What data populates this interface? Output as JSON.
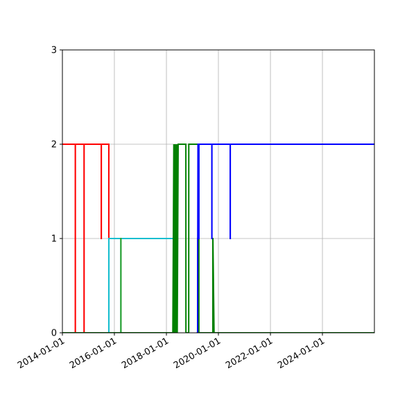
{
  "chart_data": {
    "type": "line",
    "title": "",
    "xlabel": "",
    "ylabel": "",
    "x_type": "date",
    "xlim": [
      "2014-01-01",
      "2025-12-31"
    ],
    "ylim": [
      0,
      3
    ],
    "grid": true,
    "legend": "none",
    "xticks": [
      "2014-01-01",
      "2016-01-01",
      "2018-01-01",
      "2020-01-01",
      "2022-01-01",
      "2024-01-01"
    ],
    "yticks": [
      0,
      1,
      2,
      3
    ],
    "series": [
      {
        "color": "#ff0000",
        "x": [
          "2014-01-01",
          "2014-07-01",
          "2014-07-01",
          "2014-07-02",
          "2014-07-02",
          "2014-11-01",
          "2014-11-01",
          "2014-11-02",
          "2014-11-02",
          "2015-07-01",
          "2015-07-01",
          "2015-07-02",
          "2015-07-02",
          "2015-10-15",
          "2015-10-15",
          "2018-04-10",
          "2018-04-10",
          "2018-04-11",
          "2018-04-11"
        ],
        "y": [
          2,
          2,
          0,
          0,
          2,
          2,
          0,
          0,
          2,
          2,
          1,
          1,
          2,
          2,
          1,
          1,
          0,
          0,
          1
        ]
      },
      {
        "color": "#17becf",
        "x": [
          "2015-10-15",
          "2015-10-15",
          "2015-10-16",
          "2015-10-16",
          "2016-04-01",
          "2016-04-01",
          "2016-04-02",
          "2016-04-02",
          "2018-04-01"
        ],
        "y": [
          1,
          0,
          0,
          1,
          1,
          0,
          0,
          1,
          1
        ]
      },
      {
        "color": "#2ca02c",
        "x": [
          "2016-04-01",
          "2016-04-01",
          "2016-04-02",
          "2016-04-02",
          "2018-04-01"
        ],
        "y": [
          0,
          1,
          1,
          0,
          0
        ]
      },
      {
        "color": "#008000",
        "x": [
          "2014-01-01",
          "2018-04-01",
          "2018-04-15",
          "2018-04-16",
          "2018-05-01",
          "2018-05-02",
          "2018-05-15",
          "2018-05-16",
          "2018-06-01",
          "2018-06-02",
          "2018-06-15",
          "2018-10-01",
          "2018-10-02",
          "2018-11-10",
          "2018-11-11",
          "2019-04-01",
          "2019-04-01",
          "2019-04-02",
          "2019-04-02",
          "2019-10-15",
          "2019-10-15",
          "2019-10-16",
          "2019-11-01",
          "2019-11-02",
          "2025-12-31"
        ],
        "y": [
          0,
          0,
          2,
          0,
          2,
          0,
          2,
          0,
          2,
          0,
          2,
          2,
          0,
          0,
          2,
          2,
          1,
          1,
          0,
          0,
          1,
          1,
          0,
          0,
          0
        ]
      },
      {
        "color": "#0000ff",
        "x": [
          "2019-03-01",
          "2019-03-15",
          "2019-03-16",
          "2019-03-17",
          "2019-03-20",
          "2019-04-01",
          "2019-04-01",
          "2019-04-02",
          "2019-04-02",
          "2019-10-01",
          "2019-10-01",
          "2019-10-02",
          "2019-10-02",
          "2019-12-01",
          "2019-12-02",
          "2020-06-15",
          "2020-06-15",
          "2020-06-16",
          "2020-06-16",
          "2025-12-31"
        ],
        "y": [
          0,
          0,
          1,
          1,
          2,
          2,
          1,
          1,
          2,
          2,
          1,
          1,
          2,
          2,
          2,
          2,
          1,
          1,
          2,
          2
        ]
      }
    ]
  }
}
